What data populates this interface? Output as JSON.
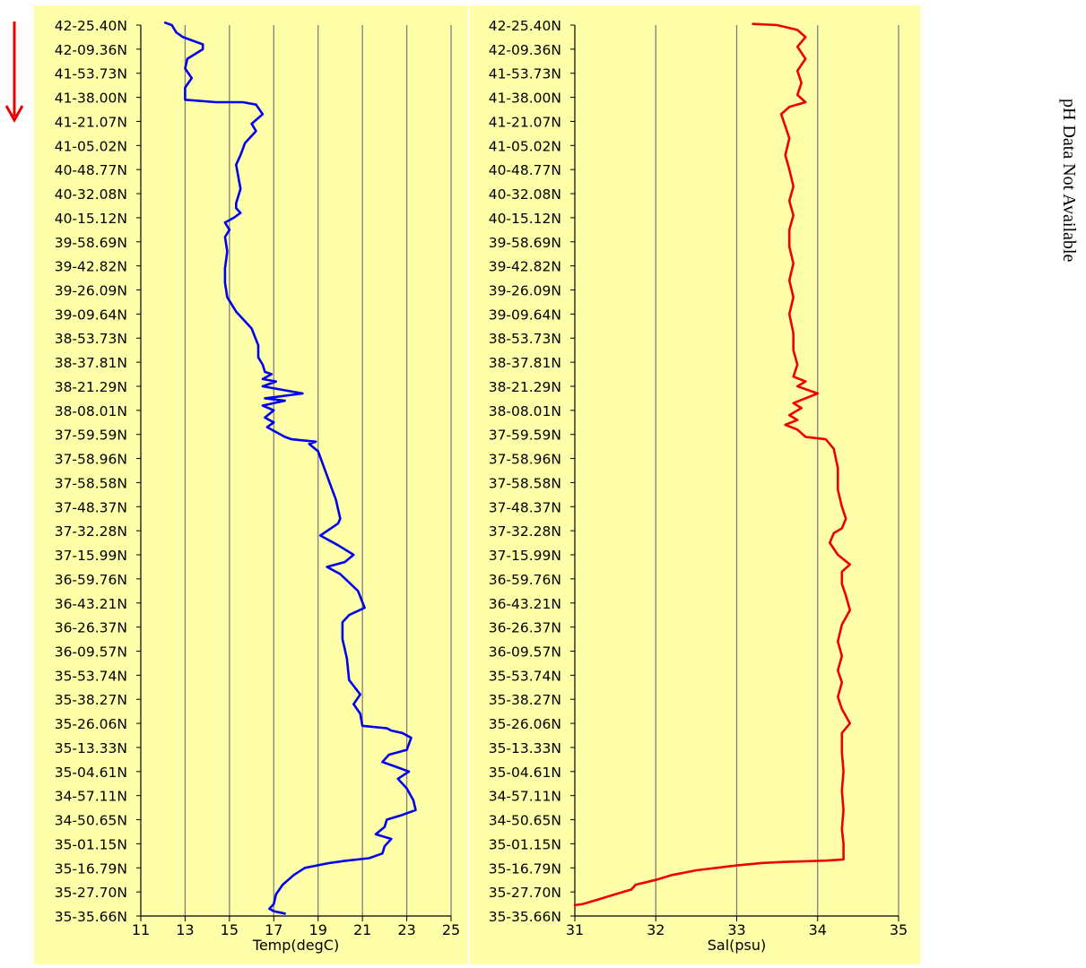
{
  "colors": {
    "panel_bg": "#FFFFAA",
    "grid": "#808080",
    "axis": "#000000",
    "temp_line": "#0000EE",
    "sal_line": "#EE0000",
    "arrow": "#EE0000"
  },
  "side_note": "pH Data Not Available",
  "arrow_icon": "down-arrow-icon",
  "chart_data": [
    {
      "type": "line",
      "xlabel": "Temp(degC)",
      "ylabel": "",
      "xlim": [
        11,
        25
      ],
      "xticks": [
        "11",
        "13",
        "15",
        "17",
        "19",
        "21",
        "23",
        "25"
      ],
      "grid": true,
      "yticks": [
        "42-25.40N",
        "42-09.36N",
        "41-53.73N",
        "41-38.00N",
        "41-21.07N",
        "41-05.02N",
        "40-48.77N",
        "40-32.08N",
        "40-15.12N",
        "39-58.69N",
        "39-42.82N",
        "39-26.09N",
        "39-09.64N",
        "38-53.73N",
        "38-37.81N",
        "38-21.29N",
        "38-08.01N",
        "37-59.59N",
        "37-58.96N",
        "37-58.58N",
        "37-48.37N",
        "37-32.28N",
        "37-15.99N",
        "36-59.76N",
        "36-43.21N",
        "36-26.37N",
        "36-09.57N",
        "35-53.74N",
        "35-38.27N",
        "35-26.06N",
        "35-13.33N",
        "35-04.61N",
        "34-57.11N",
        "34-50.65N",
        "35-01.15N",
        "35-16.79N",
        "35-27.70N",
        "35-35.66N"
      ],
      "series": [
        {
          "color": "#0000EE",
          "points": [
            [
              12.1,
              -0.1
            ],
            [
              12.4,
              0
            ],
            [
              12.6,
              0.3
            ],
            [
              12.9,
              0.5
            ],
            [
              13.2,
              0.6
            ],
            [
              13.8,
              0.8
            ],
            [
              13.8,
              1
            ],
            [
              13.1,
              1.4
            ],
            [
              13.0,
              1.8
            ],
            [
              13.3,
              2.2
            ],
            [
              13.0,
              2.6
            ],
            [
              13.0,
              3.1
            ],
            [
              14.4,
              3.2
            ],
            [
              15.6,
              3.2
            ],
            [
              16.2,
              3.3
            ],
            [
              16.5,
              3.7
            ],
            [
              16.0,
              4.1
            ],
            [
              16.2,
              4.4
            ],
            [
              15.7,
              4.9
            ],
            [
              15.5,
              5.4
            ],
            [
              15.3,
              5.8
            ],
            [
              15.5,
              6.8
            ],
            [
              15.3,
              7.4
            ],
            [
              15.3,
              7.6
            ],
            [
              15.5,
              7.8
            ],
            [
              15.2,
              8
            ],
            [
              14.8,
              8.2
            ],
            [
              15.0,
              8.5
            ],
            [
              14.8,
              8.8
            ],
            [
              14.9,
              9.4
            ],
            [
              14.8,
              10.1
            ],
            [
              14.8,
              10.7
            ],
            [
              14.9,
              11.3
            ],
            [
              15.1,
              11.6
            ],
            [
              15.3,
              11.9
            ],
            [
              15.6,
              12.2
            ],
            [
              16.0,
              12.6
            ],
            [
              16.3,
              13.3
            ],
            [
              16.3,
              13.8
            ],
            [
              16.5,
              14.1
            ],
            [
              16.6,
              14.4
            ],
            [
              16.9,
              14.5
            ],
            [
              16.5,
              14.7
            ],
            [
              17.1,
              14.8
            ],
            [
              16.5,
              15
            ],
            [
              18.3,
              15.3
            ],
            [
              16.6,
              15.5
            ],
            [
              17.5,
              15.6
            ],
            [
              16.5,
              15.8
            ],
            [
              17.0,
              16
            ],
            [
              16.6,
              16.3
            ],
            [
              17.0,
              16.5
            ],
            [
              16.7,
              16.7
            ],
            [
              17.5,
              17.1
            ],
            [
              17.8,
              17.2
            ],
            [
              18.9,
              17.3
            ],
            [
              18.6,
              17.4
            ],
            [
              19.0,
              17.7
            ],
            [
              19.4,
              18.7
            ],
            [
              19.6,
              19.2
            ],
            [
              19.8,
              19.7
            ],
            [
              20.0,
              20.5
            ],
            [
              19.9,
              20.7
            ],
            [
              19.1,
              21.2
            ],
            [
              19.9,
              21.6
            ],
            [
              20.6,
              22
            ],
            [
              20.2,
              22.3
            ],
            [
              19.4,
              22.5
            ],
            [
              20.0,
              22.8
            ],
            [
              20.8,
              23.5
            ],
            [
              21.1,
              24.2
            ],
            [
              20.4,
              24.5
            ],
            [
              20.1,
              24.8
            ],
            [
              20.1,
              25.5
            ],
            [
              20.3,
              26.3
            ],
            [
              20.4,
              27.2
            ],
            [
              20.9,
              27.8
            ],
            [
              20.6,
              28.2
            ],
            [
              20.9,
              28.6
            ],
            [
              21.0,
              29.1
            ],
            [
              22.1,
              29.2
            ],
            [
              22.3,
              29.3
            ],
            [
              22.8,
              29.4
            ],
            [
              23.2,
              29.6
            ],
            [
              23.0,
              30.1
            ],
            [
              22.2,
              30.3
            ],
            [
              21.9,
              30.6
            ],
            [
              22.5,
              30.8
            ],
            [
              23.1,
              31
            ],
            [
              22.6,
              31.3
            ],
            [
              23.0,
              31.7
            ],
            [
              23.3,
              32.2
            ],
            [
              23.4,
              32.6
            ],
            [
              22.8,
              32.8
            ],
            [
              22.1,
              33.0
            ],
            [
              22.0,
              33.3
            ],
            [
              21.6,
              33.6
            ],
            [
              22.3,
              33.8
            ],
            [
              22.0,
              34.1
            ],
            [
              21.9,
              34.4
            ],
            [
              21.3,
              34.6
            ],
            [
              20.3,
              34.7
            ],
            [
              19.5,
              34.8
            ],
            [
              18.4,
              35.0
            ],
            [
              17.9,
              35.3
            ],
            [
              17.4,
              35.7
            ],
            [
              17.1,
              36.1
            ],
            [
              17.0,
              36.5
            ],
            [
              16.8,
              36.7
            ],
            [
              17.0,
              36.8
            ],
            [
              17.5,
              36.9
            ]
          ]
        }
      ]
    },
    {
      "type": "line",
      "xlabel": "Sal(psu)",
      "ylabel": "",
      "xlim": [
        31,
        35
      ],
      "xticks": [
        "31",
        "32",
        "33",
        "34",
        "35"
      ],
      "grid": true,
      "yticks": [
        "42-25.40N",
        "42-09.36N",
        "41-53.73N",
        "41-38.00N",
        "41-21.07N",
        "41-05.02N",
        "40-48.77N",
        "40-32.08N",
        "40-15.12N",
        "39-58.69N",
        "39-42.82N",
        "39-26.09N",
        "39-09.64N",
        "38-53.73N",
        "38-37.81N",
        "38-21.29N",
        "38-08.01N",
        "37-59.59N",
        "37-58.96N",
        "37-58.58N",
        "37-48.37N",
        "37-32.28N",
        "37-15.99N",
        "36-59.76N",
        "36-43.21N",
        "36-26.37N",
        "36-09.57N",
        "35-53.74N",
        "35-38.27N",
        "35-26.06N",
        "35-13.33N",
        "35-04.61N",
        "34-57.11N",
        "34-50.65N",
        "35-01.15N",
        "35-16.79N",
        "35-27.70N",
        "35-35.66N"
      ],
      "series": [
        {
          "color": "#EE0000",
          "points": [
            [
              33.2,
              -0.05
            ],
            [
              33.5,
              0
            ],
            [
              33.75,
              0.2
            ],
            [
              33.85,
              0.5
            ],
            [
              33.75,
              0.9
            ],
            [
              33.85,
              1.4
            ],
            [
              33.75,
              1.9
            ],
            [
              33.8,
              2.4
            ],
            [
              33.75,
              2.9
            ],
            [
              33.85,
              3.2
            ],
            [
              33.65,
              3.4
            ],
            [
              33.55,
              3.7
            ],
            [
              33.6,
              4.2
            ],
            [
              33.65,
              4.7
            ],
            [
              33.6,
              5.4
            ],
            [
              33.65,
              6
            ],
            [
              33.7,
              6.7
            ],
            [
              33.65,
              7.3
            ],
            [
              33.7,
              7.9
            ],
            [
              33.65,
              8.5
            ],
            [
              33.65,
              9.2
            ],
            [
              33.7,
              9.9
            ],
            [
              33.65,
              10.6
            ],
            [
              33.7,
              11.3
            ],
            [
              33.65,
              12
            ],
            [
              33.7,
              12.8
            ],
            [
              33.7,
              13.5
            ],
            [
              33.75,
              14.1
            ],
            [
              33.7,
              14.6
            ],
            [
              33.85,
              14.8
            ],
            [
              33.75,
              15
            ],
            [
              34.0,
              15.3
            ],
            [
              33.85,
              15.5
            ],
            [
              33.7,
              15.7
            ],
            [
              33.8,
              15.9
            ],
            [
              33.65,
              16.2
            ],
            [
              33.75,
              16.4
            ],
            [
              33.6,
              16.6
            ],
            [
              33.75,
              16.8
            ],
            [
              33.85,
              17.1
            ],
            [
              34.1,
              17.2
            ],
            [
              34.2,
              17.6
            ],
            [
              34.25,
              18.4
            ],
            [
              34.25,
              19.3
            ],
            [
              34.3,
              20
            ],
            [
              34.35,
              20.5
            ],
            [
              34.3,
              20.9
            ],
            [
              34.2,
              21.1
            ],
            [
              34.15,
              21.5
            ],
            [
              34.25,
              22
            ],
            [
              34.4,
              22.4
            ],
            [
              34.3,
              22.7
            ],
            [
              34.3,
              23.2
            ],
            [
              34.35,
              23.7
            ],
            [
              34.4,
              24.3
            ],
            [
              34.3,
              24.9
            ],
            [
              34.25,
              25.6
            ],
            [
              34.3,
              26.2
            ],
            [
              34.25,
              26.8
            ],
            [
              34.3,
              27.3
            ],
            [
              34.25,
              27.9
            ],
            [
              34.3,
              28.4
            ],
            [
              34.4,
              29
            ],
            [
              34.3,
              29.4
            ],
            [
              34.3,
              30.2
            ],
            [
              34.32,
              31
            ],
            [
              34.3,
              31.8
            ],
            [
              34.32,
              32.6
            ],
            [
              34.3,
              33.4
            ],
            [
              34.32,
              34
            ],
            [
              34.32,
              34.65
            ],
            [
              34.1,
              34.7
            ],
            [
              33.6,
              34.75
            ],
            [
              33.3,
              34.8
            ],
            [
              33.0,
              34.9
            ],
            [
              32.5,
              35.1
            ],
            [
              32.2,
              35.3
            ],
            [
              32.0,
              35.5
            ],
            [
              31.75,
              35.7
            ],
            [
              31.7,
              35.9
            ],
            [
              31.5,
              36.1
            ],
            [
              31.3,
              36.3
            ],
            [
              31.1,
              36.5
            ],
            [
              31.0,
              36.55
            ]
          ]
        }
      ]
    }
  ]
}
